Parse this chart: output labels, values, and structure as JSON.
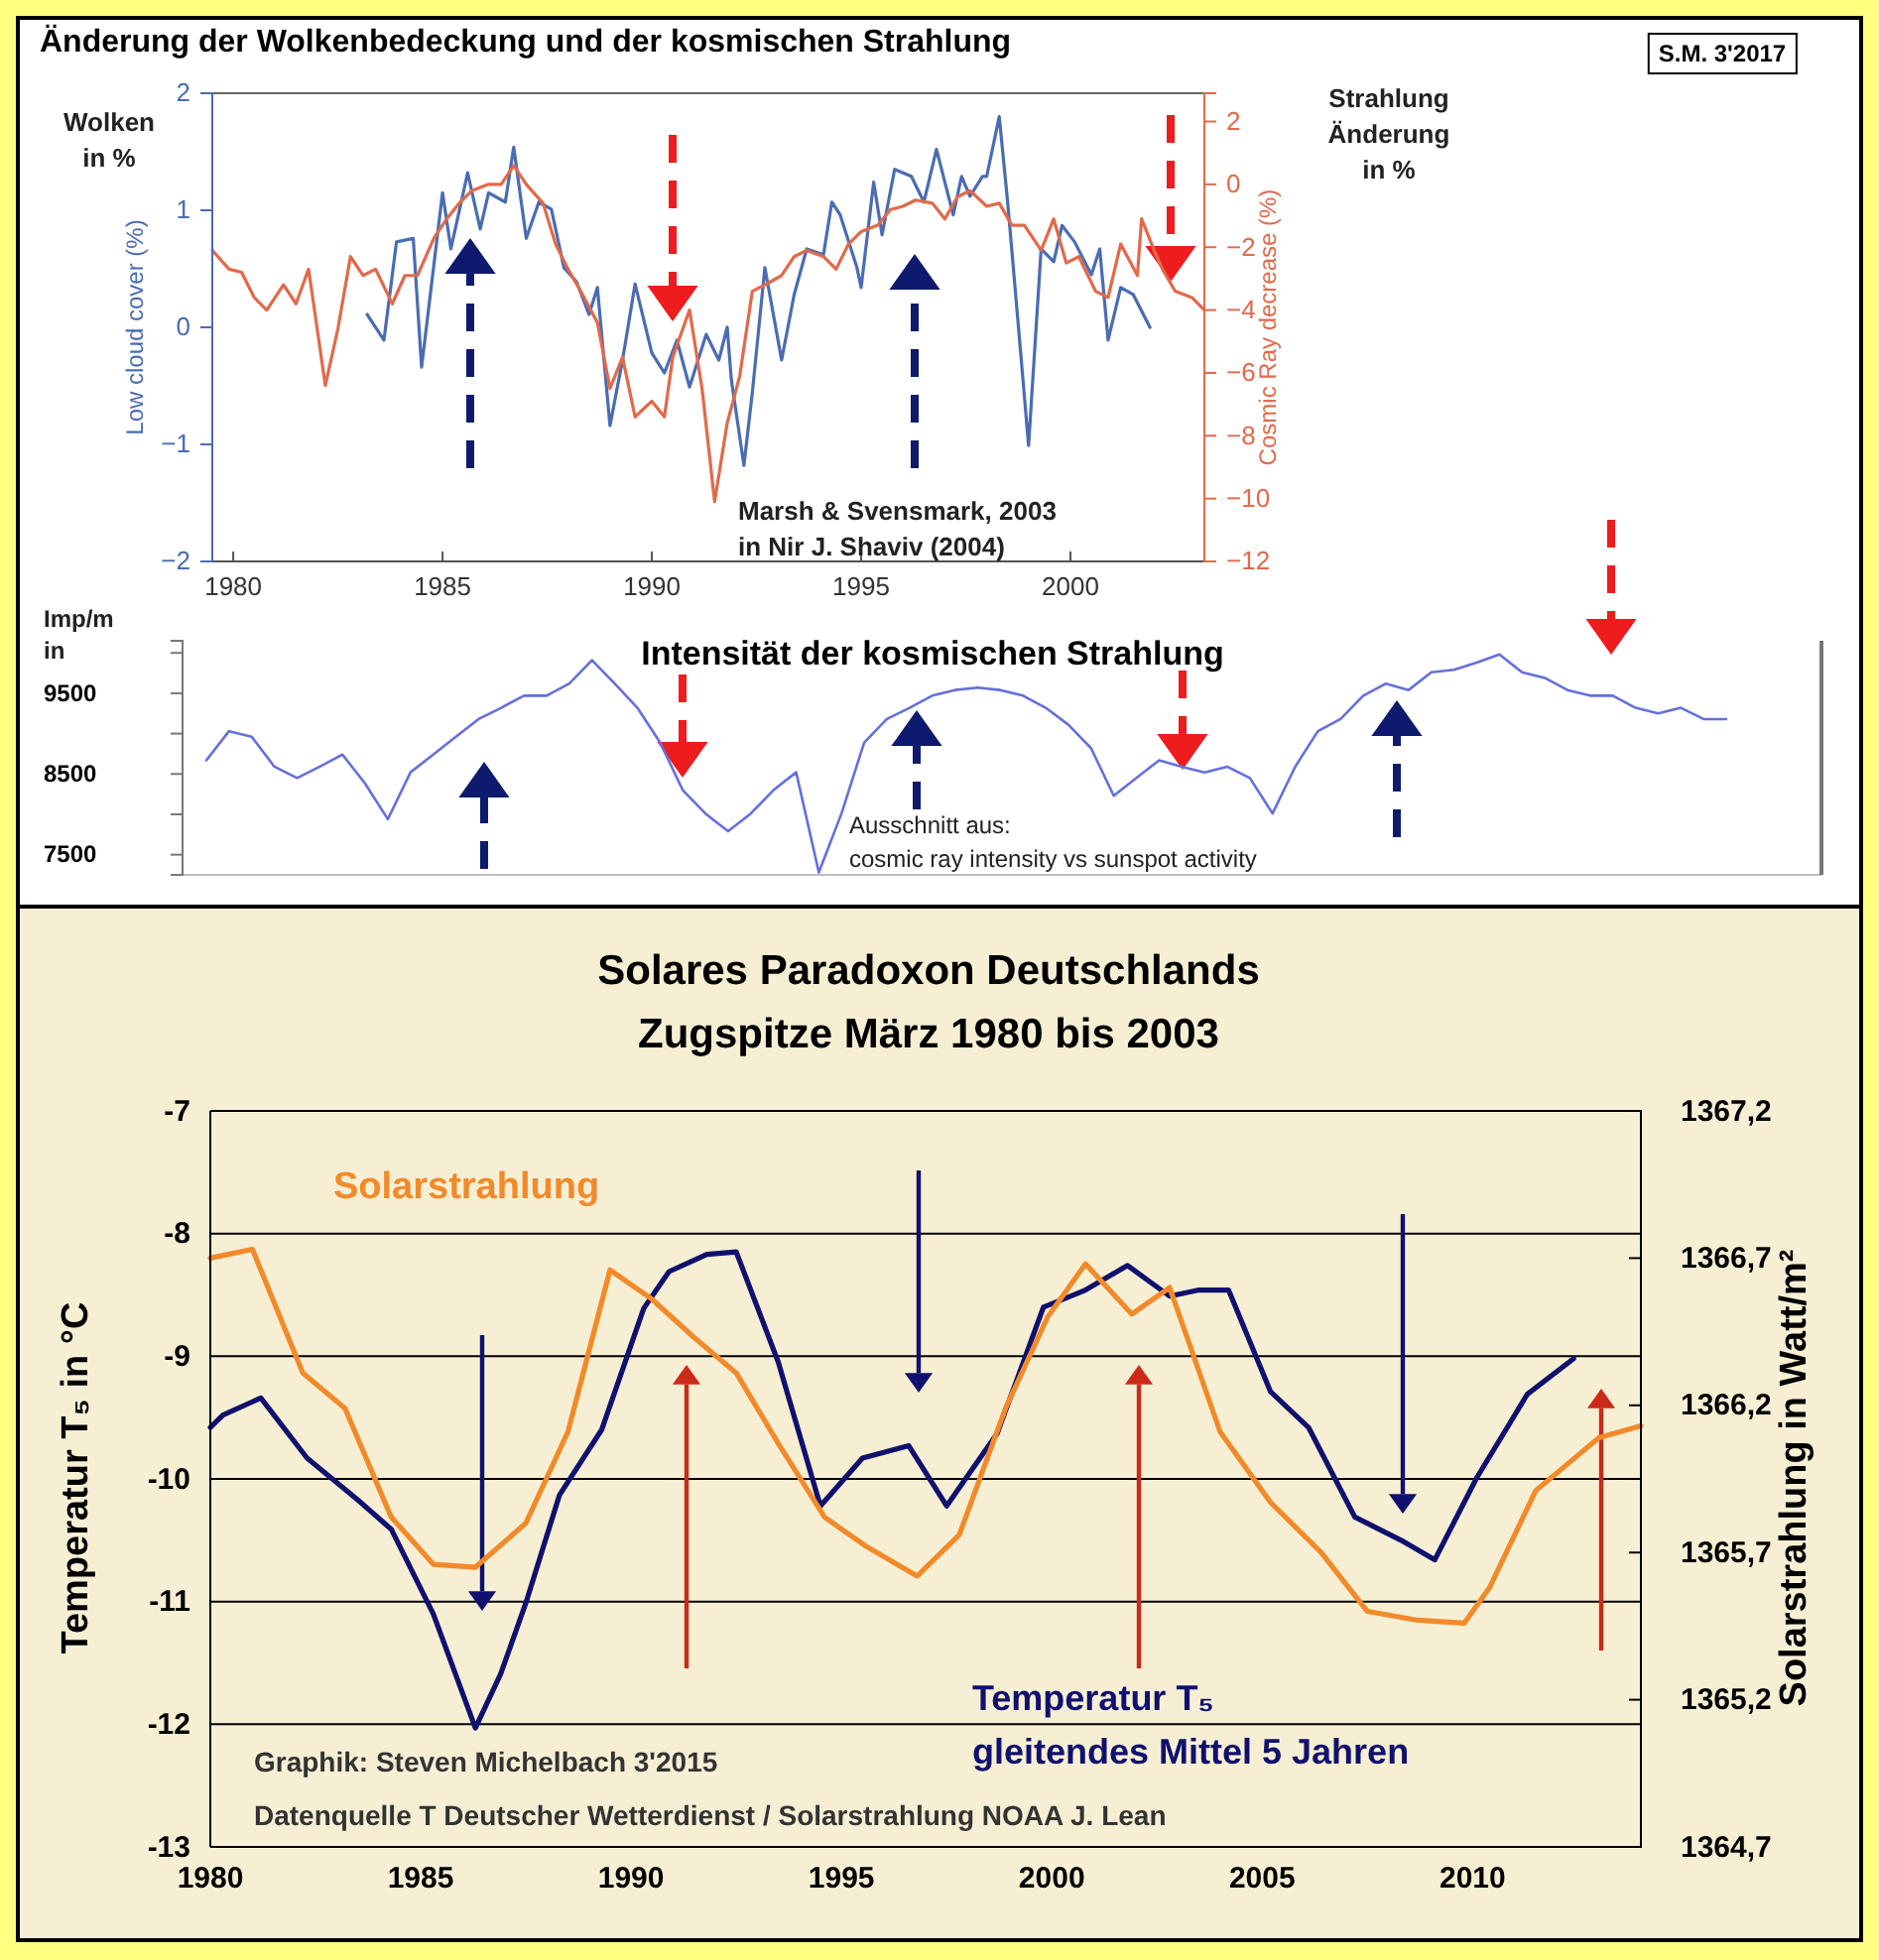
{
  "chart_data": [
    {
      "type": "line",
      "title": "Änderung der Wolkenbedeckung und der kosmischen Strahlung",
      "ylabel": "Low cloud cover (%)",
      "y2label": "Cosmic Ray decrease (%)",
      "xlim": [
        1979.5,
        2003.2
      ],
      "xticks": [
        1980,
        1985,
        1990,
        1995,
        2000
      ],
      "ylim": [
        -2,
        2
      ],
      "yticks": [
        {
          "value": -2,
          "label": "−2"
        },
        {
          "value": -1,
          "label": "−1"
        },
        0,
        1,
        2
      ],
      "y2lim": [
        -12,
        2.9
      ],
      "y2ticks": [
        {
          "value": -12,
          "label": "−12"
        },
        {
          "value": -10,
          "label": "−10"
        },
        {
          "value": -8,
          "label": "−8"
        },
        {
          "value": -6,
          "label": "−6"
        },
        {
          "value": -4,
          "label": "−4"
        },
        {
          "value": -2,
          "label": "−2"
        },
        0,
        2
      ],
      "annotations": [
        "Wolken\nin %",
        "Strahlung\nÄnderung\nin %",
        "S.M. 3'2017",
        "Marsh & Svensmark, 2003\nin Nir J. Shaviv (2004)"
      ],
      "series": [
        {
          "color": "#4a6cb3",
          "x": [
            1983.2,
            1983.6,
            1983.9,
            1984.3,
            1984.5,
            1985.0,
            1985.2,
            1985.6,
            1985.9,
            1986.1,
            1986.5,
            1986.7,
            1987.0,
            1987.3,
            1987.6,
            1987.9,
            1988.2,
            1988.5,
            1988.7,
            1989.0,
            1989.3,
            1989.6,
            1990.0,
            1990.3,
            1990.6,
            1990.9,
            1991.3,
            1991.6,
            1991.8,
            1991.9,
            1992.2,
            1992.4,
            1992.7,
            1993.1,
            1993.4,
            1993.7,
            1994.1,
            1994.3,
            1994.5,
            1994.9,
            1995.0,
            1995.3,
            1995.5,
            1995.8,
            1996.2,
            1996.5,
            1996.8,
            1997.2,
            1997.4,
            1997.6,
            1997.9,
            1998.0,
            1998.3,
            1998.5,
            1998.8,
            1999.0,
            1999.3,
            1999.6,
            1999.8,
            2000.1,
            2000.5,
            2000.7,
            2000.9,
            2001.2,
            2001.5,
            2001.9
          ],
          "values": [
            0.11,
            -0.11,
            0.73,
            0.76,
            -0.34,
            1.15,
            0.67,
            1.32,
            0.84,
            1.15,
            1.07,
            1.54,
            0.76,
            1.07,
            1.01,
            0.51,
            0.39,
            0.11,
            0.34,
            -0.84,
            -0.28,
            0.37,
            -0.22,
            -0.39,
            -0.11,
            -0.51,
            -0.06,
            -0.28,
            0.0,
            -0.45,
            -1.18,
            -0.56,
            0.51,
            -0.28,
            0.28,
            0.67,
            0.62,
            1.07,
            0.96,
            0.51,
            0.34,
            1.24,
            0.79,
            1.35,
            1.29,
            1.07,
            1.52,
            0.96,
            1.29,
            1.12,
            1.29,
            1.29,
            1.8,
            1.07,
            -0.17,
            -1.01,
            0.67,
            0.56,
            0.87,
            0.73,
            0.45,
            0.67,
            -0.11,
            0.34,
            0.28,
            0.0
          ]
        },
        {
          "color": "#e2694a",
          "axis": "y2",
          "x": [
            1979.5,
            1979.9,
            1980.2,
            1980.5,
            1980.8,
            1981.2,
            1981.5,
            1981.8,
            1982.2,
            1982.5,
            1982.8,
            1983.1,
            1983.4,
            1983.8,
            1984.1,
            1984.4,
            1984.8,
            1985.1,
            1985.4,
            1985.7,
            1986.1,
            1986.4,
            1986.7,
            1987.0,
            1987.4,
            1987.7,
            1988.0,
            1988.3,
            1988.7,
            1989.0,
            1989.3,
            1989.6,
            1990.0,
            1990.3,
            1990.5,
            1990.9,
            1991.2,
            1991.5,
            1991.8,
            1992.1,
            1992.4,
            1992.7,
            1993.1,
            1993.4,
            1993.7,
            1994.1,
            1994.4,
            1994.7,
            1995.0,
            1995.4,
            1995.7,
            1996.0,
            1996.3,
            1996.7,
            1997.0,
            1997.3,
            1997.6,
            1998.0,
            1998.3,
            1998.6,
            1998.9,
            1999.3,
            1999.6,
            1999.9,
            2000.2,
            2000.6,
            2000.9,
            2001.2,
            2001.6,
            2001.7,
            2002.0,
            2002.2,
            2002.5,
            2002.9,
            2003.2
          ],
          "values": [
            -2.1,
            -2.7,
            -2.8,
            -3.6,
            -4.0,
            -3.2,
            -3.8,
            -2.7,
            -6.4,
            -4.6,
            -2.3,
            -2.9,
            -2.7,
            -3.8,
            -2.9,
            -2.9,
            -1.7,
            -1.1,
            -0.6,
            -0.2,
            0.0,
            0.0,
            0.6,
            0.0,
            -0.6,
            -1.9,
            -2.7,
            -3.4,
            -4.4,
            -6.5,
            -5.5,
            -7.4,
            -6.9,
            -7.4,
            -5.5,
            -4.0,
            -6.5,
            -10.1,
            -7.6,
            -6.1,
            -3.4,
            -3.2,
            -2.9,
            -2.3,
            -2.1,
            -2.3,
            -2.7,
            -1.9,
            -1.5,
            -1.3,
            -0.8,
            -0.7,
            -0.5,
            -0.6,
            -1.1,
            -0.4,
            -0.2,
            -0.7,
            -0.6,
            -1.3,
            -1.3,
            -2.1,
            -1.1,
            -2.5,
            -2.3,
            -3.4,
            -3.6,
            -1.9,
            -2.9,
            -1.1,
            -2.1,
            -2.7,
            -3.4,
            -3.6,
            -4.0
          ]
        }
      ]
    },
    {
      "type": "line",
      "title": "Intensität der kosmischen Strahlung",
      "ylabel": "Imp/m\nin",
      "categories": [
        null,
        null,
        null,
        null,
        null,
        null,
        null,
        null,
        null,
        null,
        null,
        null,
        null,
        null,
        null,
        null,
        null,
        null,
        null,
        null,
        null,
        null,
        null,
        null,
        null,
        null,
        null,
        null,
        null,
        null,
        null,
        null,
        null,
        null,
        null,
        null,
        null,
        null,
        null,
        null,
        null,
        null,
        null,
        null,
        null,
        null,
        null,
        null,
        null,
        null,
        null,
        null,
        null,
        null,
        null,
        null,
        null,
        null,
        null,
        null,
        null,
        null,
        null,
        null,
        null,
        null,
        null,
        null
      ],
      "ylim": [
        7250,
        10150
      ],
      "yticks": [
        7500,
        {
          "value": 8000,
          "label": null
        },
        8500,
        {
          "value": 9000,
          "label": null
        },
        9500,
        {
          "value": 10000,
          "label": null
        }
      ],
      "tick_labels": "y",
      "annotations": [
        "Ausschnitt aus:\ncosmic ray intensity vs sunspot activity"
      ],
      "series": [
        {
          "color": "#6470dc",
          "values": [
            8670,
            9030,
            8960,
            8590,
            8450,
            8590,
            8740,
            8380,
            7940,
            8520,
            8740,
            8960,
            9180,
            9320,
            9470,
            9470,
            9620,
            9910,
            9620,
            9320,
            8890,
            8300,
            8010,
            7790,
            8010,
            8300,
            8520,
            7280,
            8010,
            8890,
            9180,
            9320,
            9470,
            9540,
            9570,
            9540,
            9470,
            9320,
            9110,
            8820,
            8230,
            8450,
            8670,
            8590,
            8520,
            8590,
            8450,
            8010,
            8590,
            9030,
            9180,
            9470,
            9620,
            9540,
            9760,
            9790,
            9880,
            9980,
            9760,
            9690,
            9540,
            9470,
            9470,
            9320,
            9250,
            9320,
            9180,
            9180
          ]
        }
      ]
    },
    {
      "type": "line",
      "title": "Solares Paradoxon Deutschlands",
      "subtitle": "Zugspitze März 1980 bis 2003",
      "ylabel": "Temperatur T₅ in °C",
      "y2label": "Solarstrahlung in Watt/m²",
      "grid": "y",
      "xlim": [
        1980,
        2014
      ],
      "xticks": [
        1980,
        1985,
        1990,
        1995,
        2000,
        2005,
        2010
      ],
      "ylim": [
        -13,
        -7
      ],
      "yticks": [
        -13,
        -12,
        -11,
        -10,
        -9,
        -8,
        -7
      ],
      "y2lim": [
        1364.7,
        1367.2
      ],
      "y2ticks": [
        {
          "value": 1364.7,
          "label": "1364,7"
        },
        {
          "value": 1365.2,
          "label": "1365,2"
        },
        {
          "value": 1365.7,
          "label": "1365,7"
        },
        {
          "value": 1366.2,
          "label": "1366,2"
        },
        {
          "value": 1366.7,
          "label": "1366,7"
        },
        {
          "value": 1367.2,
          "label": "1367,2"
        }
      ],
      "annotations": [
        "Graphik: Steven Michelbach 3'2015",
        "Datenquelle T Deutscher Wetterdienst / Solarstrahlung NOAA J. Lean"
      ],
      "series": [
        {
          "name": "Temperatur T₅ gleitendes Mittel 5 Jahren",
          "color": "#10106e",
          "x": [
            1980.0,
            1980.3,
            1981.2,
            1982.3,
            1983.5,
            1984.3,
            1985.3,
            1986.3,
            1986.9,
            1987.5,
            1988.3,
            1989.3,
            1990.3,
            1990.9,
            1991.8,
            1992.5,
            1993.5,
            1994.5,
            1995.5,
            1996.6,
            1997.5,
            1998.7,
            1999.8,
            2000.8,
            2001.8,
            2002.8,
            2003.5,
            2004.2,
            2005.2,
            2006.1,
            2007.2,
            2008.3,
            2009.1,
            2010.1,
            2011.3,
            2012.4
          ],
          "values": [
            -9.58,
            -9.48,
            -9.34,
            -9.83,
            -10.17,
            -10.41,
            -11.1,
            -12.03,
            -11.59,
            -11.01,
            -10.13,
            -9.6,
            -8.61,
            -8.31,
            -8.17,
            -8.15,
            -9.05,
            -10.22,
            -9.83,
            -9.73,
            -10.22,
            -9.63,
            -8.6,
            -8.46,
            -8.26,
            -8.51,
            -8.46,
            -8.46,
            -9.29,
            -9.58,
            -10.31,
            -10.5,
            -10.66,
            -9.99,
            -9.31,
            -9.02
          ]
        },
        {
          "name": "Solarstrahlung",
          "color": "#f28a2a",
          "axis": "y2",
          "x": [
            1980.0,
            1981.0,
            1982.2,
            1983.2,
            1984.3,
            1985.3,
            1986.3,
            1987.5,
            1988.5,
            1989.5,
            1990.5,
            1991.5,
            1992.5,
            1993.5,
            1994.6,
            1995.6,
            1996.8,
            1997.8,
            1998.9,
            1999.9,
            2000.8,
            2001.9,
            2002.8,
            2004.0,
            2005.2,
            2006.4,
            2007.5,
            2008.7,
            2009.8,
            2010.4,
            2011.5,
            2013.0,
            2014.0
          ],
          "values": [
            1366.7,
            1366.73,
            1366.31,
            1366.19,
            1365.82,
            1365.66,
            1365.65,
            1365.8,
            1366.11,
            1366.66,
            1366.56,
            1366.43,
            1366.31,
            1366.07,
            1365.82,
            1365.72,
            1365.62,
            1365.76,
            1366.19,
            1366.5,
            1366.68,
            1366.51,
            1366.6,
            1366.11,
            1365.87,
            1365.7,
            1365.5,
            1365.47,
            1365.46,
            1365.58,
            1365.91,
            1366.09,
            1366.13
          ]
        }
      ]
    }
  ]
}
